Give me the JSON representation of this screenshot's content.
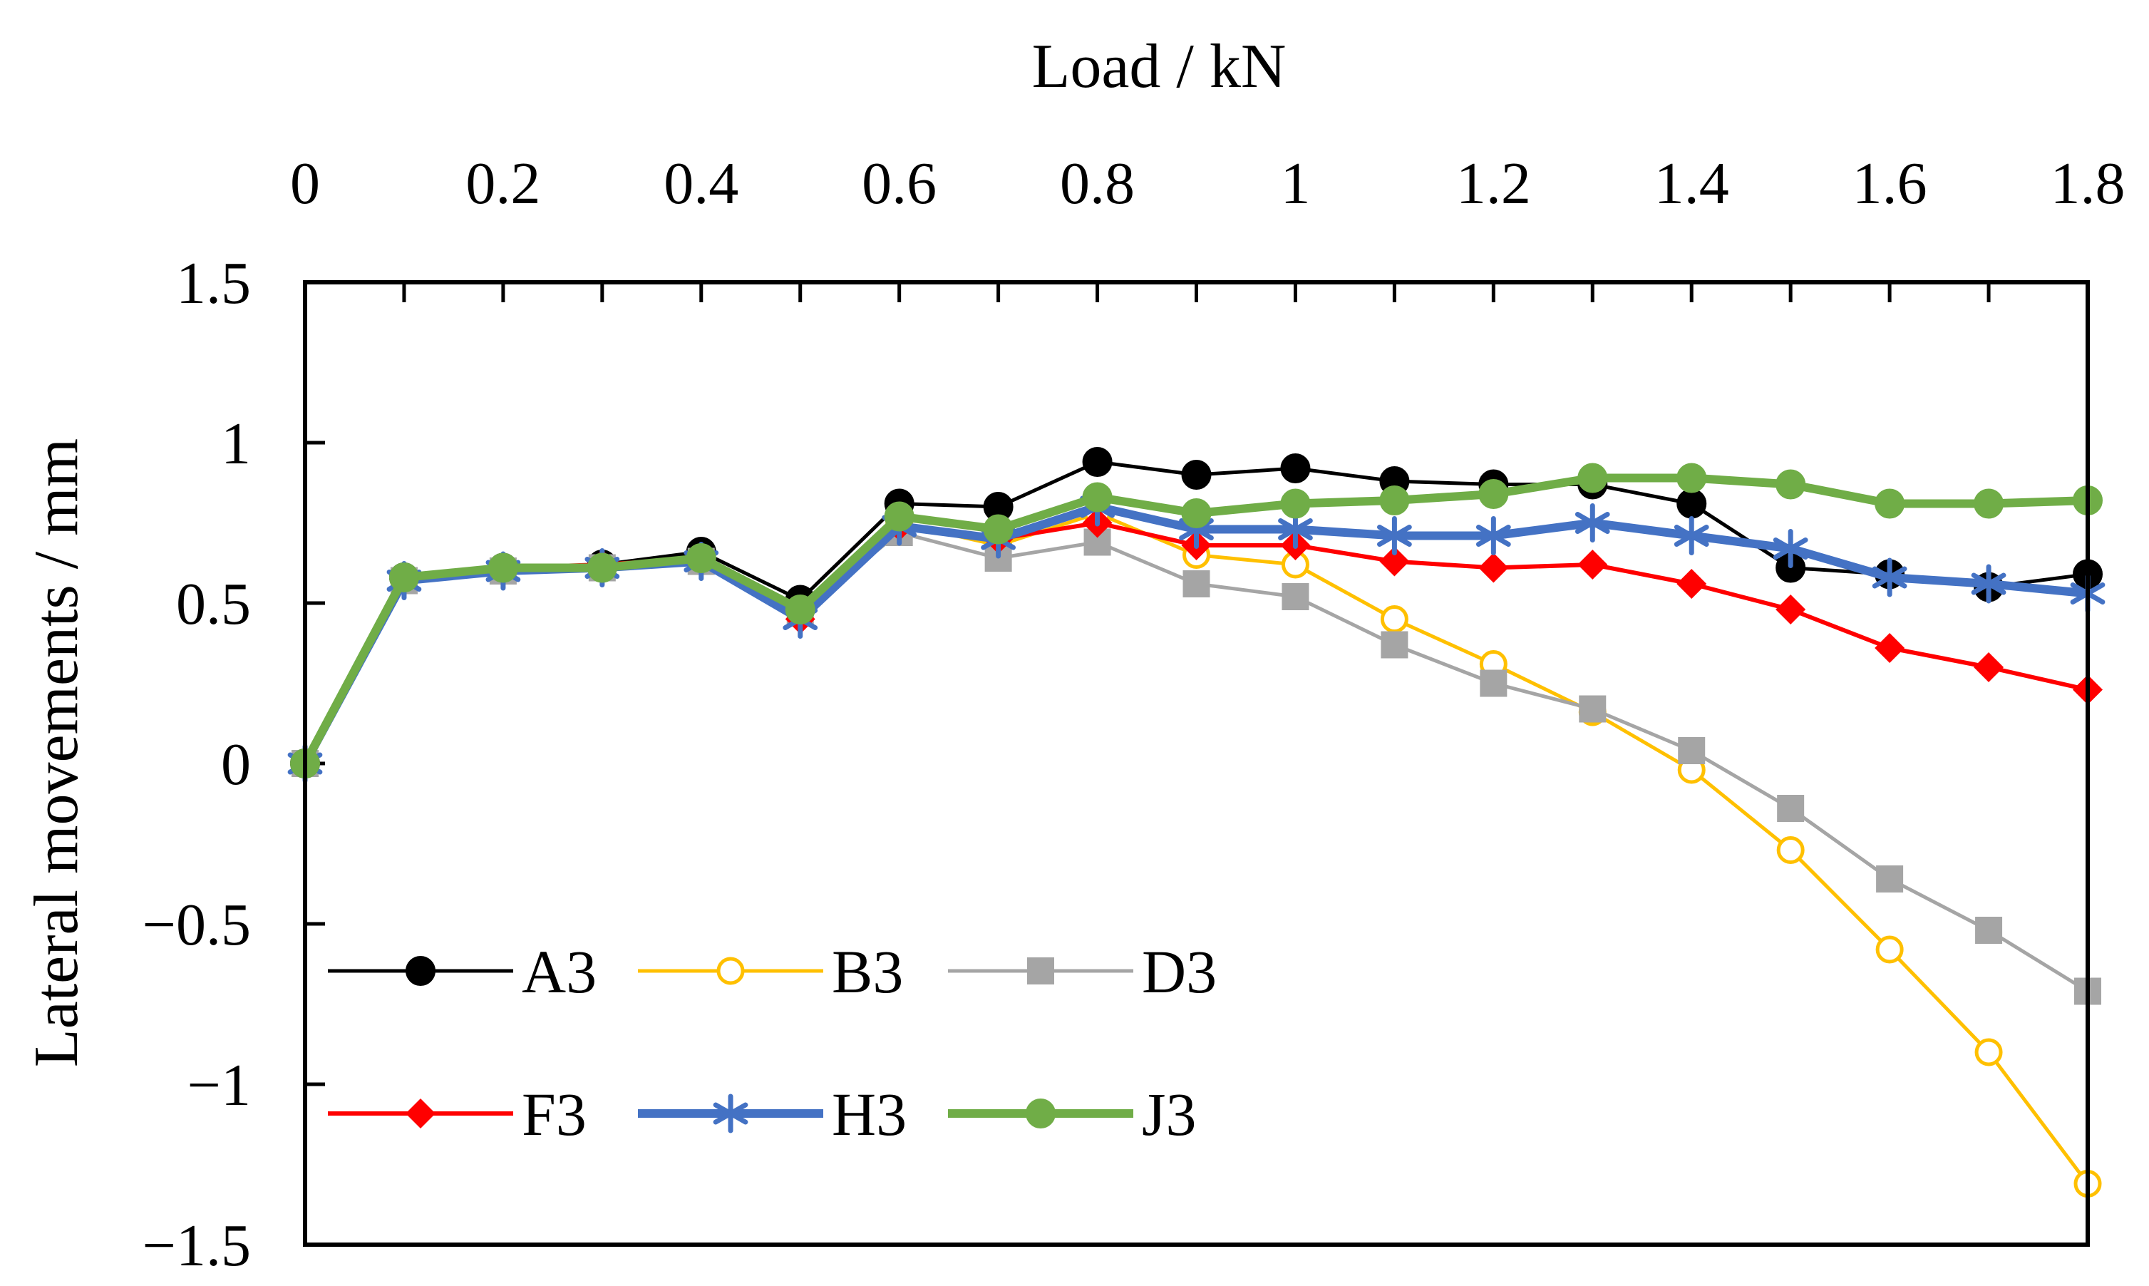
{
  "chart_data": {
    "type": "line",
    "title": "",
    "xlabel": "Load / kN",
    "ylabel": "Lateral movements / mm",
    "x_axis_position": "top",
    "xlim": [
      0,
      1.8
    ],
    "ylim": [
      -1.5,
      1.5
    ],
    "xticks": [
      "0",
      "0.2",
      "0.4",
      "0.6",
      "0.8",
      "1",
      "1.2",
      "1.4",
      "1.6",
      "1.8"
    ],
    "yticks": [
      "1.5",
      "1",
      "0.5",
      "0",
      "−0.5",
      "−1",
      "−1.5"
    ],
    "grid": false,
    "legend_position": "bottom-left",
    "x": [
      0,
      0.1,
      0.2,
      0.3,
      0.4,
      0.5,
      0.6,
      0.7,
      0.8,
      0.9,
      1.0,
      1.1,
      1.2,
      1.3,
      1.4,
      1.5,
      1.6,
      1.7,
      1.8
    ],
    "series": [
      {
        "name": "A3",
        "color": "#000000",
        "marker": "circle-filled",
        "values": [
          0,
          0.58,
          0.61,
          0.62,
          0.66,
          0.51,
          0.81,
          0.8,
          0.94,
          0.9,
          0.92,
          0.88,
          0.87,
          0.87,
          0.81,
          0.61,
          0.59,
          0.55,
          0.59
        ]
      },
      {
        "name": "B3",
        "color": "#ffc000",
        "marker": "circle-open",
        "values": [
          0,
          0.57,
          0.6,
          0.61,
          0.63,
          0.48,
          0.75,
          0.68,
          0.78,
          0.65,
          0.62,
          0.45,
          0.31,
          0.16,
          -0.02,
          -0.27,
          -0.58,
          -0.9,
          -1.31
        ]
      },
      {
        "name": "D3",
        "color": "#a5a5a5",
        "marker": "square",
        "values": [
          0,
          0.57,
          0.6,
          0.61,
          0.63,
          0.47,
          0.72,
          0.64,
          0.69,
          0.56,
          0.52,
          0.37,
          0.25,
          0.17,
          0.04,
          -0.14,
          -0.36,
          -0.52,
          -0.71
        ]
      },
      {
        "name": "F3",
        "color": "#ff0000",
        "marker": "diamond",
        "values": [
          0,
          0.58,
          0.61,
          0.62,
          0.64,
          0.45,
          0.74,
          0.7,
          0.75,
          0.68,
          0.68,
          0.63,
          0.61,
          0.62,
          0.56,
          0.48,
          0.36,
          0.3,
          0.23
        ]
      },
      {
        "name": "H3",
        "color": "#4472c4",
        "marker": "asterisk",
        "values": [
          0,
          0.57,
          0.6,
          0.61,
          0.63,
          0.45,
          0.74,
          0.7,
          0.8,
          0.73,
          0.73,
          0.71,
          0.71,
          0.75,
          0.71,
          0.67,
          0.58,
          0.56,
          0.53
        ]
      },
      {
        "name": "J3",
        "color": "#70ad47",
        "marker": "circle-filled",
        "values": [
          0,
          0.58,
          0.61,
          0.61,
          0.64,
          0.48,
          0.77,
          0.73,
          0.83,
          0.78,
          0.81,
          0.82,
          0.84,
          0.89,
          0.89,
          0.87,
          0.81,
          0.81,
          0.82
        ]
      }
    ]
  }
}
